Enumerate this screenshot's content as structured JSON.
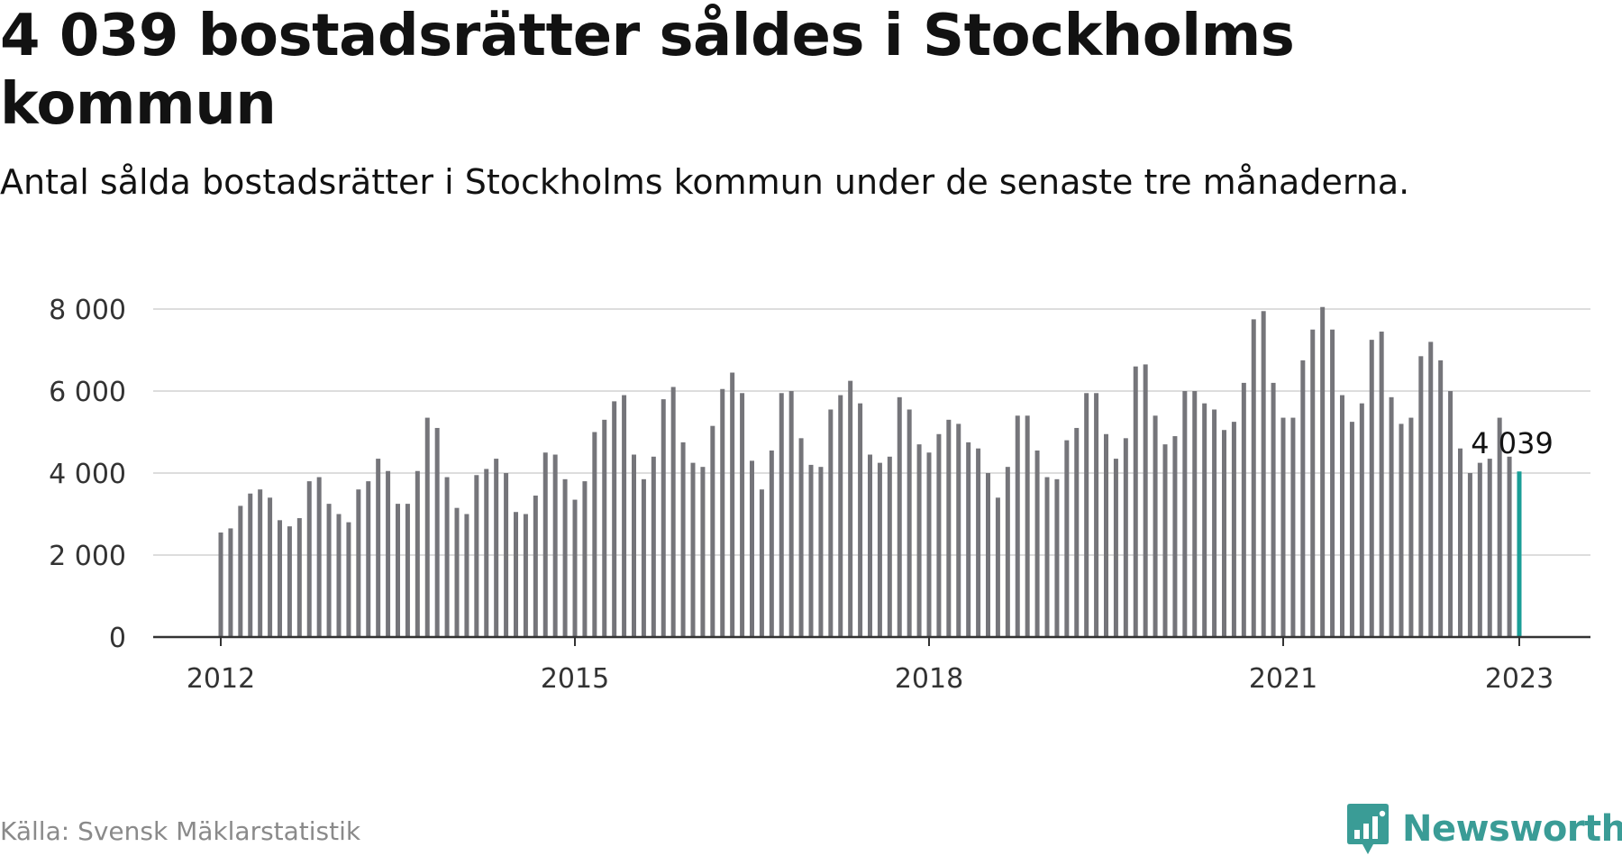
{
  "title": "4 039 bostadsrätter såldes i Stockholms kommun",
  "subtitle": "Antal sålda bostadsrätter i Stockholms kommun under de senaste tre månaderna.",
  "source": "Källa: Svensk Mäklarstatistik",
  "brand": {
    "name": "Newsworthy",
    "color": "#3a9c96"
  },
  "colors": {
    "bar": "#75757a",
    "highlight": "#1a9e97",
    "grid": "#dddddd",
    "axis": "#333333"
  },
  "chart_data": {
    "type": "bar",
    "x_start": "2012-01",
    "x_end": "2023-01",
    "xticks": [
      "2012",
      "2015",
      "2018",
      "2021",
      "2023"
    ],
    "xtick_months": [
      "2012-01",
      "2015-01",
      "2018-01",
      "2021-01",
      "2023-01"
    ],
    "yticks": [
      0,
      2000,
      4000,
      6000,
      8000
    ],
    "ytick_labels": [
      "0",
      "2 000",
      "4 000",
      "6 000",
      "8 000"
    ],
    "ylim": [
      0,
      8000
    ],
    "highlight": {
      "month": "2023-01",
      "value": 4039,
      "label": "4 039"
    },
    "values": [
      2550,
      2650,
      3200,
      3500,
      3600,
      3400,
      2850,
      2700,
      2900,
      3800,
      3900,
      3250,
      3000,
      2800,
      3600,
      3800,
      4350,
      4050,
      3250,
      3250,
      4050,
      5350,
      5100,
      3900,
      3150,
      3000,
      3950,
      4100,
      4350,
      4000,
      3050,
      3000,
      3450,
      4500,
      4450,
      3850,
      3350,
      3800,
      5000,
      5300,
      5750,
      5900,
      4450,
      3850,
      4400,
      5800,
      6100,
      4750,
      4250,
      4150,
      5150,
      6050,
      6450,
      5950,
      4300,
      3600,
      4550,
      5950,
      6000,
      4850,
      4200,
      4150,
      5550,
      5900,
      6250,
      5700,
      4450,
      4250,
      4400,
      5850,
      5550,
      4700,
      4500,
      4950,
      5300,
      5200,
      4750,
      4600,
      4000,
      3400,
      4150,
      5400,
      5400,
      4550,
      3900,
      3850,
      4800,
      5100,
      5950,
      5950,
      4950,
      4350,
      4850,
      6600,
      6650,
      5400,
      4700,
      4900,
      6000,
      6000,
      5700,
      5550,
      5050,
      5250,
      6200,
      7750,
      7950,
      6200,
      5350,
      5350,
      6750,
      7500,
      8050,
      7500,
      5900,
      5250,
      5700,
      7250,
      7450,
      5850,
      5200,
      5350,
      6850,
      7200,
      6750,
      6000,
      4600,
      4000,
      4250,
      4350,
      5350,
      4400,
      4039
    ]
  }
}
